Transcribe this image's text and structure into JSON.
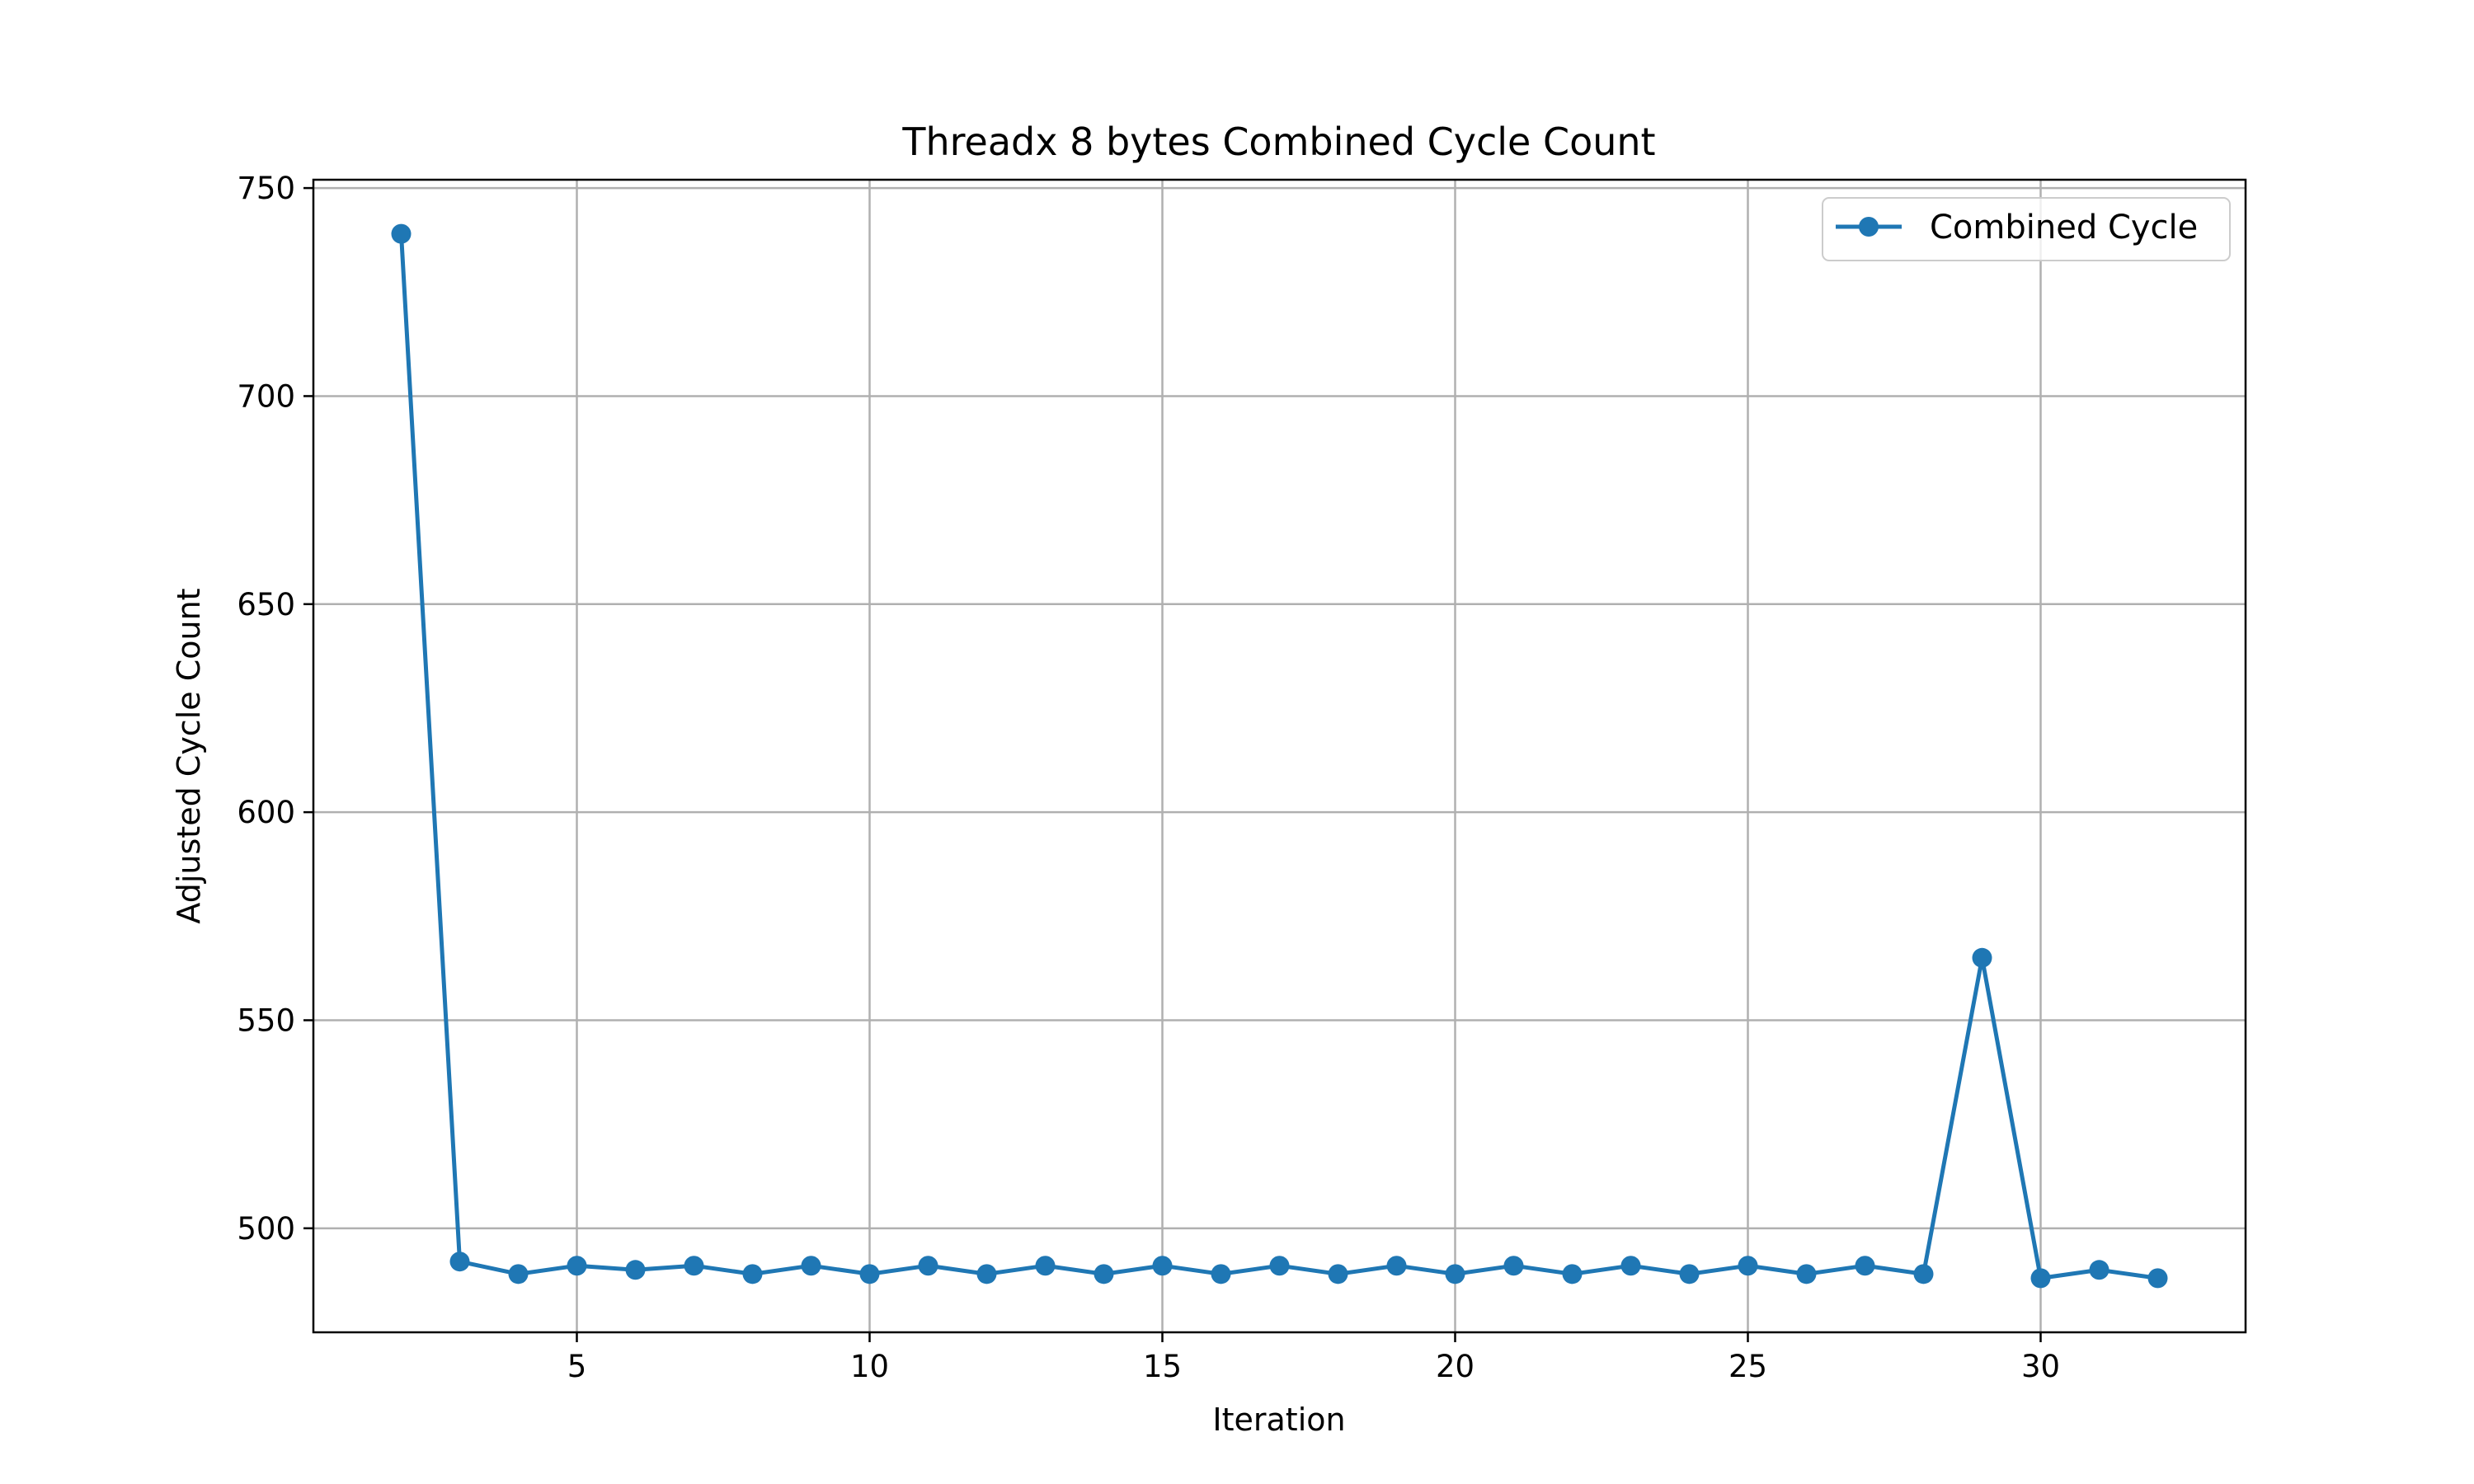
{
  "chart_data": {
    "type": "line",
    "title": "Threadx 8 bytes Combined Cycle Count",
    "xlabel": "Iteration",
    "ylabel": "Adjusted Cycle Count",
    "xlim": [
      0.5,
      33.5
    ],
    "ylim": [
      475,
      752
    ],
    "xticks": [
      5,
      10,
      15,
      20,
      25,
      30
    ],
    "yticks": [
      500,
      550,
      600,
      650,
      700,
      750
    ],
    "grid": true,
    "legend_position": "top-right",
    "series": [
      {
        "name": "Combined Cycle",
        "color": "#1f77b4",
        "marker": "circle",
        "x": [
          2,
          3,
          4,
          5,
          6,
          7,
          8,
          9,
          10,
          11,
          12,
          13,
          14,
          15,
          16,
          17,
          18,
          19,
          20,
          21,
          22,
          23,
          24,
          25,
          26,
          27,
          28,
          29,
          30,
          31,
          32
        ],
        "y": [
          739,
          492,
          489,
          491,
          490,
          491,
          489,
          491,
          489,
          491,
          489,
          491,
          489,
          491,
          489,
          491,
          489,
          491,
          489,
          491,
          489,
          491,
          489,
          491,
          489,
          491,
          489,
          565,
          488,
          490,
          488
        ]
      }
    ]
  }
}
